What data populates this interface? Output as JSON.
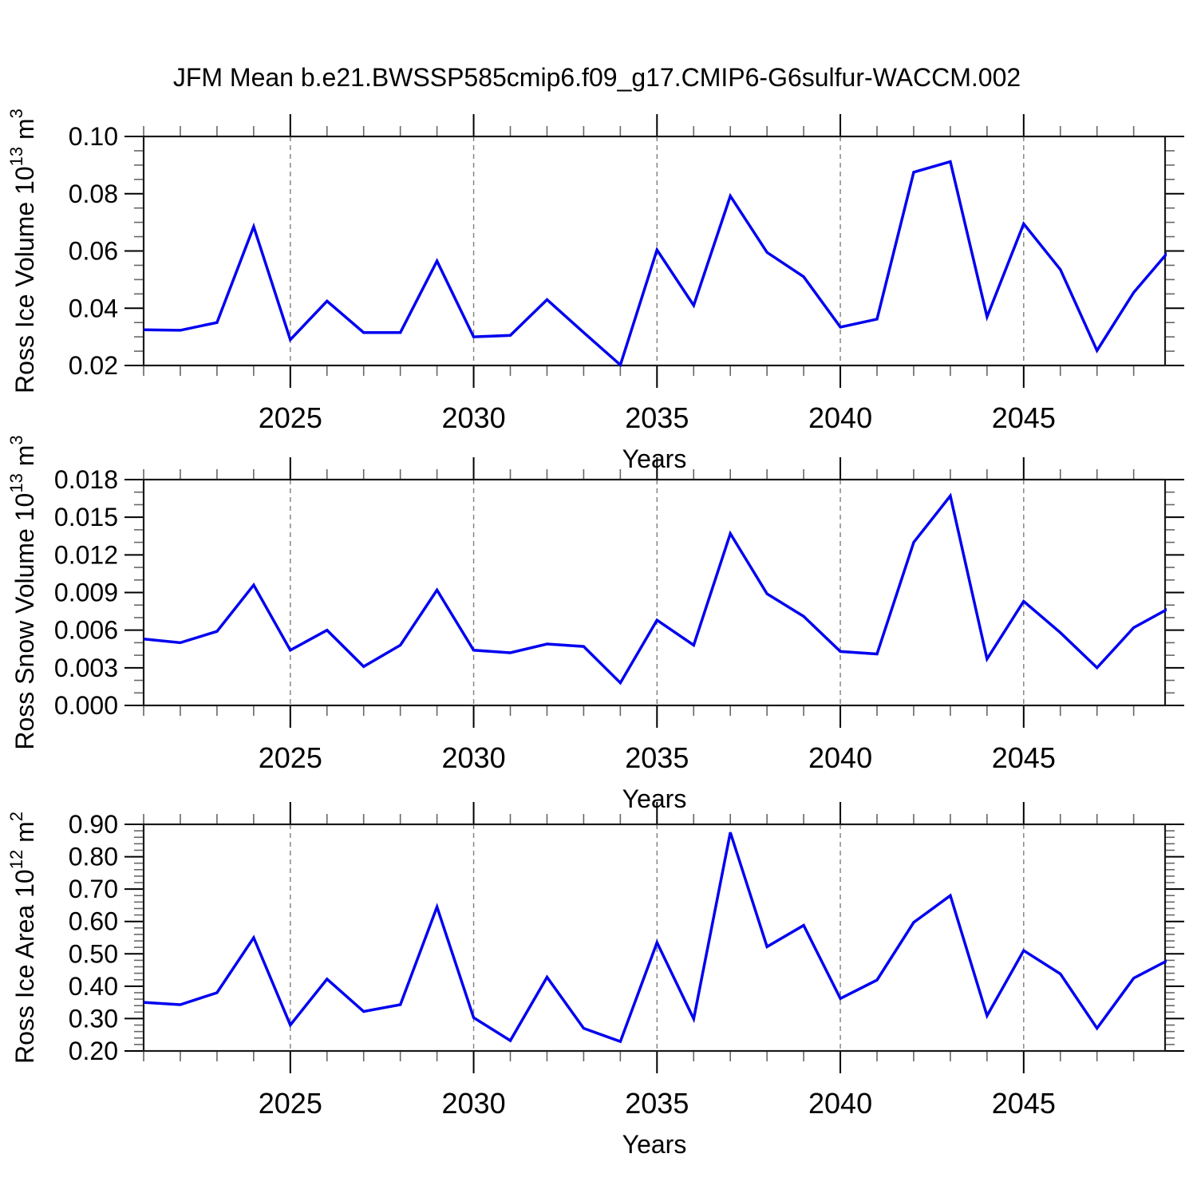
{
  "title": "JFM Mean b.e21.BWSSP585cmip6.f09_g17.CMIP6-G6sulfur-WACCM.002",
  "colors": {
    "line": "#0000f0",
    "frame": "#1a1a1a",
    "grid": "#7f7f7f",
    "major_tick": "#000000",
    "minor_tick": "#666666",
    "background": "#ffffff"
  },
  "x_axis": {
    "label": "Years",
    "start_year": 2021,
    "end_year": 2049,
    "gridline_years": [
      2025,
      2030,
      2035,
      2040,
      2045
    ],
    "tick_labels": [
      "2025",
      "2030",
      "2035",
      "2040",
      "2045"
    ]
  },
  "chart_data": [
    {
      "type": "line",
      "ylabel_text": "Ross Ice Volume 10^13 m^3",
      "ylabel_parts": [
        {
          "t": "Ross Ice Volume 10",
          "sup": false
        },
        {
          "t": "13",
          "sup": true
        },
        {
          "t": " m",
          "sup": false
        },
        {
          "t": "3",
          "sup": true
        }
      ],
      "xlabel": "Years",
      "ylim": [
        0.02,
        0.1
      ],
      "ytick_step": 0.02,
      "yminor_step": 0.005,
      "ytick_labels": [
        "0.10",
        "0.08",
        "0.06",
        "0.04",
        "0.02"
      ],
      "x": [
        2021,
        2022,
        2023,
        2024,
        2025,
        2026,
        2027,
        2028,
        2029,
        2030,
        2031,
        2032,
        2033,
        2034,
        2035,
        2036,
        2037,
        2038,
        2039,
        2040,
        2041,
        2042,
        2043,
        2044,
        2045,
        2046,
        2047,
        2048,
        2049
      ],
      "values": [
        0.0325,
        0.0323,
        0.035,
        0.0685,
        0.029,
        0.0425,
        0.0315,
        0.0315,
        0.0565,
        0.03,
        0.0305,
        0.043,
        0.0315,
        0.0202,
        0.0604,
        0.041,
        0.0792,
        0.0595,
        0.051,
        0.0334,
        0.0362,
        0.0875,
        0.0912,
        0.037,
        0.0695,
        0.0535,
        0.0252,
        0.0455,
        0.0605
      ]
    },
    {
      "type": "line",
      "ylabel_text": "Ross Snow Volume 10^13 m^3",
      "ylabel_parts": [
        {
          "t": "Ross Snow Volume 10",
          "sup": false
        },
        {
          "t": "13",
          "sup": true
        },
        {
          "t": " m",
          "sup": false
        },
        {
          "t": "3",
          "sup": true
        }
      ],
      "xlabel": "Years",
      "ylim": [
        0.0,
        0.018
      ],
      "ytick_step": 0.003,
      "yminor_step": 0.001,
      "ytick_labels": [
        "0.018",
        "0.015",
        "0.012",
        "0.009",
        "0.006",
        "0.003",
        "0.000"
      ],
      "x": [
        2021,
        2022,
        2023,
        2024,
        2025,
        2026,
        2027,
        2028,
        2029,
        2030,
        2031,
        2032,
        2033,
        2034,
        2035,
        2036,
        2037,
        2038,
        2039,
        2040,
        2041,
        2042,
        2043,
        2044,
        2045,
        2046,
        2047,
        2048,
        2049
      ],
      "values": [
        0.0053,
        0.005,
        0.0059,
        0.0096,
        0.0044,
        0.006,
        0.0031,
        0.0048,
        0.0092,
        0.0044,
        0.0042,
        0.0049,
        0.0047,
        0.0018,
        0.0068,
        0.0048,
        0.0137,
        0.0089,
        0.0071,
        0.0043,
        0.0041,
        0.013,
        0.0167,
        0.0037,
        0.0083,
        0.0058,
        0.003,
        0.0062,
        0.0078
      ]
    },
    {
      "type": "line",
      "ylabel_text": "Ross Ice Area 10^12 m^2",
      "ylabel_parts": [
        {
          "t": "Ross Ice Area 10",
          "sup": false
        },
        {
          "t": "12",
          "sup": true
        },
        {
          "t": " m",
          "sup": false
        },
        {
          "t": "2",
          "sup": true
        }
      ],
      "xlabel": "Years",
      "ylim": [
        0.2,
        0.9
      ],
      "ytick_step": 0.1,
      "yminor_step": 0.02,
      "ytick_labels": [
        "0.90",
        "0.80",
        "0.70",
        "0.60",
        "0.50",
        "0.40",
        "0.30",
        "0.20"
      ],
      "x": [
        2021,
        2022,
        2023,
        2024,
        2025,
        2026,
        2027,
        2028,
        2029,
        2030,
        2031,
        2032,
        2033,
        2034,
        2035,
        2036,
        2037,
        2038,
        2039,
        2040,
        2041,
        2042,
        2043,
        2044,
        2045,
        2046,
        2047,
        2048,
        2049
      ],
      "values": [
        0.35,
        0.343,
        0.38,
        0.55,
        0.28,
        0.422,
        0.322,
        0.343,
        0.645,
        0.303,
        0.232,
        0.428,
        0.27,
        0.229,
        0.535,
        0.299,
        0.875,
        0.522,
        0.588,
        0.362,
        0.419,
        0.597,
        0.68,
        0.309,
        0.51,
        0.438,
        0.27,
        0.425,
        0.484
      ]
    }
  ],
  "layout_note": "three stacked line charts sharing x axis years 2021-2049"
}
